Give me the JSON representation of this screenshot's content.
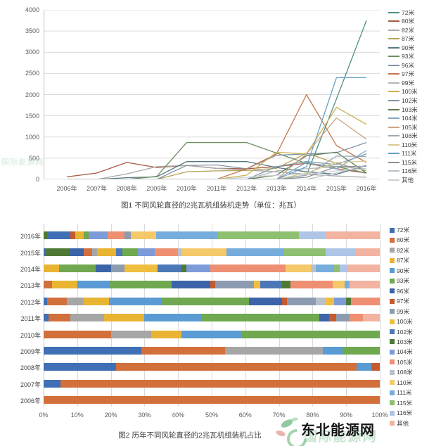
{
  "watermark": {
    "site_name": "东北能源网",
    "behind_text": "国际能源网",
    "side_text": "国际能源网",
    "leaf_green": "#7fbf8f",
    "leaf_pink": "#e8a8a0",
    "ring_green": "#8cc89a"
  },
  "chart_data": [
    {
      "type": "line",
      "title": "图1 不同风轮直径的2兆瓦机组装机走势（单位：兆瓦）",
      "xlabel": "",
      "ylabel": "",
      "ylim": [
        0,
        4000
      ],
      "ytick_step": 500,
      "y_ticks": [
        0,
        500,
        1000,
        1500,
        2000,
        2500,
        3000,
        3500,
        4000
      ],
      "grid": true,
      "legend_position": "right",
      "x": [
        "2006年",
        "2007年",
        "2008年",
        "2009年",
        "2010年",
        "2011年",
        "2012年",
        "2013年",
        "2014年",
        "2015年",
        "2016年"
      ],
      "series": [
        {
          "name": "72米",
          "color": "#4E8F85",
          "values": [
            0,
            0,
            0,
            0,
            0,
            0,
            0,
            0,
            100,
            1900,
            3750
          ]
        },
        {
          "name": "80米",
          "color": "#A65A41",
          "values": [
            60,
            150,
            400,
            280,
            330,
            260,
            250,
            300,
            380,
            250,
            150
          ]
        },
        {
          "name": "82米",
          "color": "#A8A8A8",
          "values": [
            0,
            0,
            130,
            300,
            330,
            260,
            220,
            180,
            120,
            80,
            50
          ]
        },
        {
          "name": "87米",
          "color": "#B3A359",
          "values": [
            0,
            0,
            0,
            0,
            180,
            200,
            210,
            260,
            620,
            380,
            200
          ]
        },
        {
          "name": "90米",
          "color": "#55787E",
          "values": [
            0,
            0,
            40,
            60,
            420,
            420,
            420,
            280,
            180,
            120,
            330
          ]
        },
        {
          "name": "93米",
          "color": "#6C8F63",
          "values": [
            0,
            0,
            0,
            70,
            870,
            870,
            870,
            620,
            380,
            300,
            150
          ]
        },
        {
          "name": "96米",
          "color": "#8492A8",
          "values": [
            0,
            0,
            0,
            0,
            330,
            340,
            250,
            570,
            600,
            630,
            870
          ]
        },
        {
          "name": "97米",
          "color": "#C4764F",
          "values": [
            0,
            0,
            0,
            0,
            0,
            0,
            250,
            600,
            2000,
            800,
            400
          ]
        },
        {
          "name": "99米",
          "color": "#B5B5B5",
          "values": [
            0,
            0,
            0,
            0,
            0,
            0,
            0,
            200,
            250,
            300,
            250
          ]
        },
        {
          "name": "100米",
          "color": "#C9B14E",
          "values": [
            0,
            0,
            0,
            0,
            0,
            0,
            100,
            640,
            600,
            1700,
            1300
          ]
        },
        {
          "name": "102米",
          "color": "#7E95AD",
          "values": [
            0,
            0,
            0,
            0,
            0,
            0,
            0,
            300,
            420,
            350,
            600
          ]
        },
        {
          "name": "103米",
          "color": "#5E7D52",
          "values": [
            0,
            0,
            0,
            0,
            0,
            0,
            0,
            100,
            560,
            640,
            150
          ]
        },
        {
          "name": "104米",
          "color": "#82A7C4",
          "values": [
            0,
            0,
            0,
            0,
            0,
            0,
            0,
            0,
            400,
            250,
            680
          ]
        },
        {
          "name": "105米",
          "color": "#CBA485",
          "values": [
            0,
            0,
            0,
            0,
            0,
            0,
            0,
            0,
            600,
            1450,
            950
          ]
        },
        {
          "name": "108米",
          "color": "#9FA8B0",
          "values": [
            0,
            0,
            0,
            0,
            0,
            0,
            0,
            0,
            100,
            550,
            540
          ]
        },
        {
          "name": "110米",
          "color": "#D9CB93",
          "values": [
            0,
            0,
            0,
            0,
            0,
            0,
            0,
            0,
            150,
            400,
            430
          ]
        },
        {
          "name": "111米",
          "color": "#64A0C8",
          "values": [
            0,
            0,
            0,
            0,
            0,
            0,
            0,
            0,
            300,
            2400,
            2400
          ]
        },
        {
          "name": "115米",
          "color": "#8A9096",
          "values": [
            0,
            0,
            0,
            0,
            0,
            0,
            0,
            0,
            50,
            300,
            310
          ]
        },
        {
          "name": "116米",
          "color": "#B9C2C9",
          "values": [
            0,
            0,
            0,
            0,
            0,
            0,
            0,
            0,
            0,
            150,
            340
          ]
        },
        {
          "name": "其他",
          "color": "#C9CFD6",
          "values": [
            0,
            0,
            0,
            0,
            0,
            0,
            50,
            100,
            120,
            200,
            250
          ]
        }
      ]
    },
    {
      "type": "bar",
      "subtype": "stacked-horizontal-100",
      "title": "图2 历年不同风轮直径的2兆瓦机组装机占比",
      "xlim": [
        0,
        100
      ],
      "x_ticks": [
        "0%",
        "10%",
        "20%",
        "30%",
        "40%",
        "50%",
        "60%",
        "70%",
        "80%",
        "90%",
        "100%"
      ],
      "grid": true,
      "legend_position": "right",
      "legend": [
        {
          "name": "72米",
          "color": "#3F6FB5"
        },
        {
          "name": "80米",
          "color": "#D2703B"
        },
        {
          "name": "82米",
          "color": "#A6A6A6"
        },
        {
          "name": "87米",
          "color": "#E8B431"
        },
        {
          "name": "90米",
          "color": "#5B9BD5"
        },
        {
          "name": "93米",
          "color": "#6FA84F"
        },
        {
          "name": "96米",
          "color": "#3C64A8"
        },
        {
          "name": "97米",
          "color": "#C55A2E"
        },
        {
          "name": "99米",
          "color": "#8C9BAF"
        },
        {
          "name": "100米",
          "color": "#EFBE3F"
        },
        {
          "name": "102米",
          "color": "#4C78B8"
        },
        {
          "name": "103米",
          "color": "#4E7A35"
        },
        {
          "name": "104米",
          "color": "#7C9BD9"
        },
        {
          "name": "105米",
          "color": "#EE8F72"
        },
        {
          "name": "108米",
          "color": "#B9C0CC"
        },
        {
          "name": "110米",
          "color": "#F5C96A"
        },
        {
          "name": "111米",
          "color": "#77ADDC"
        },
        {
          "name": "115米",
          "color": "#8FBF70"
        },
        {
          "name": "116米",
          "color": "#AFC5E8"
        },
        {
          "name": "其他",
          "color": "#F2B3A0"
        }
      ],
      "rows": [
        {
          "year": "2016年",
          "segments": [
            {
              "series": "103米",
              "value": 1
            },
            {
              "series": "72米",
              "value": 7
            },
            {
              "series": "97米",
              "value": 1.5
            },
            {
              "series": "87米",
              "value": 2.5
            },
            {
              "series": "93米",
              "value": 1.5
            },
            {
              "series": "104米",
              "value": 5.5
            },
            {
              "series": "105米",
              "value": 5
            },
            {
              "series": "99米",
              "value": 2
            },
            {
              "series": "110米",
              "value": 7.5
            },
            {
              "series": "111米",
              "value": 18.5
            },
            {
              "series": "115米",
              "value": 24
            },
            {
              "series": "116米",
              "value": 8
            },
            {
              "series": "其他",
              "value": 16
            }
          ]
        },
        {
          "year": "2015年",
          "segments": [
            {
              "series": "72米",
              "value": 0.5
            },
            {
              "series": "103米",
              "value": 7
            },
            {
              "series": "96米",
              "value": 4.5
            },
            {
              "series": "80米",
              "value": 2.5
            },
            {
              "series": "82米",
              "value": 1.5
            },
            {
              "series": "87米",
              "value": 5.5
            },
            {
              "series": "102米",
              "value": 2
            },
            {
              "series": "93米",
              "value": 4.5
            },
            {
              "series": "104米",
              "value": 5
            },
            {
              "series": "105米",
              "value": 7
            },
            {
              "series": "108米",
              "value": 1
            },
            {
              "series": "110米",
              "value": 13.5
            },
            {
              "series": "111米",
              "value": 17
            },
            {
              "series": "115米",
              "value": 12.5
            },
            {
              "series": "116米",
              "value": 9
            },
            {
              "series": "其他",
              "value": 7
            }
          ]
        },
        {
          "year": "2014年",
          "segments": [
            {
              "series": "87米",
              "value": 4.5
            },
            {
              "series": "93米",
              "value": 11
            },
            {
              "series": "96米",
              "value": 4.5
            },
            {
              "series": "99米",
              "value": 4
            },
            {
              "series": "100米",
              "value": 10
            },
            {
              "series": "102米",
              "value": 7
            },
            {
              "series": "103米",
              "value": 1.5
            },
            {
              "series": "104米",
              "value": 7
            },
            {
              "series": "105米",
              "value": 22.5
            },
            {
              "series": "110米",
              "value": 7.5
            },
            {
              "series": "108米",
              "value": 1.5
            },
            {
              "series": "111米",
              "value": 5.5
            },
            {
              "series": "115米",
              "value": 1.5
            },
            {
              "series": "116米",
              "value": 2.5
            },
            {
              "series": "其他",
              "value": 9.5
            }
          ]
        },
        {
          "year": "2013年",
          "segments": [
            {
              "series": "80米",
              "value": 2.5
            },
            {
              "series": "87米",
              "value": 7.5
            },
            {
              "series": "90米",
              "value": 9.5
            },
            {
              "series": "93米",
              "value": 18.5
            },
            {
              "series": "96米",
              "value": 11.5
            },
            {
              "series": "97米",
              "value": 1.5
            },
            {
              "series": "99米",
              "value": 11.5
            },
            {
              "series": "100米",
              "value": 2
            },
            {
              "series": "102米",
              "value": 6.5
            },
            {
              "series": "103米",
              "value": 2.5
            },
            {
              "series": "105米",
              "value": 12.5
            },
            {
              "series": "110米",
              "value": 3.5
            },
            {
              "series": "111米",
              "value": 1.5
            },
            {
              "series": "其他",
              "value": 9
            }
          ]
        },
        {
          "year": "2012年",
          "segments": [
            {
              "series": "72米",
              "value": 1
            },
            {
              "series": "80米",
              "value": 6
            },
            {
              "series": "82米",
              "value": 5
            },
            {
              "series": "87米",
              "value": 7.5
            },
            {
              "series": "90米",
              "value": 15.5
            },
            {
              "series": "93米",
              "value": 26
            },
            {
              "series": "96米",
              "value": 10
            },
            {
              "series": "97米",
              "value": 1.5
            },
            {
              "series": "99米",
              "value": 8.5
            },
            {
              "series": "108米",
              "value": 3
            },
            {
              "series": "100米",
              "value": 2.5
            },
            {
              "series": "104米",
              "value": 3.5
            },
            {
              "series": "103米",
              "value": 1.5
            },
            {
              "series": "105米",
              "value": 8.5
            }
          ]
        },
        {
          "year": "2011年",
          "segments": [
            {
              "series": "72米",
              "value": 1.5
            },
            {
              "series": "80米",
              "value": 6.5
            },
            {
              "series": "82米",
              "value": 10
            },
            {
              "series": "87米",
              "value": 12
            },
            {
              "series": "90米",
              "value": 17
            },
            {
              "series": "93米",
              "value": 35
            },
            {
              "series": "96米",
              "value": 3
            },
            {
              "series": "97米",
              "value": 2
            },
            {
              "series": "99米",
              "value": 4
            },
            {
              "series": "105米",
              "value": 4
            },
            {
              "series": "其他",
              "value": 5
            }
          ]
        },
        {
          "year": "2010年",
          "segments": [
            {
              "series": "80米",
              "value": 20
            },
            {
              "series": "82米",
              "value": 12
            },
            {
              "series": "87米",
              "value": 9
            },
            {
              "series": "90米",
              "value": 18
            },
            {
              "series": "93米",
              "value": 41
            }
          ]
        },
        {
          "year": "2009年",
          "segments": [
            {
              "series": "72米",
              "value": 29
            },
            {
              "series": "80米",
              "value": 25
            },
            {
              "series": "82米",
              "value": 29
            },
            {
              "series": "90米",
              "value": 6
            },
            {
              "series": "93米",
              "value": 11
            }
          ]
        },
        {
          "year": "2008年",
          "segments": [
            {
              "series": "72米",
              "value": 21.5
            },
            {
              "series": "80米",
              "value": 71.5
            },
            {
              "series": "90米",
              "value": 4.5
            },
            {
              "series": "97米",
              "value": 2.5
            }
          ]
        },
        {
          "year": "2007年",
          "segments": [
            {
              "series": "72米",
              "value": 5
            },
            {
              "series": "80米",
              "value": 95
            }
          ]
        },
        {
          "year": "2006年",
          "segments": [
            {
              "series": "80米",
              "value": 100
            }
          ]
        }
      ]
    }
  ]
}
